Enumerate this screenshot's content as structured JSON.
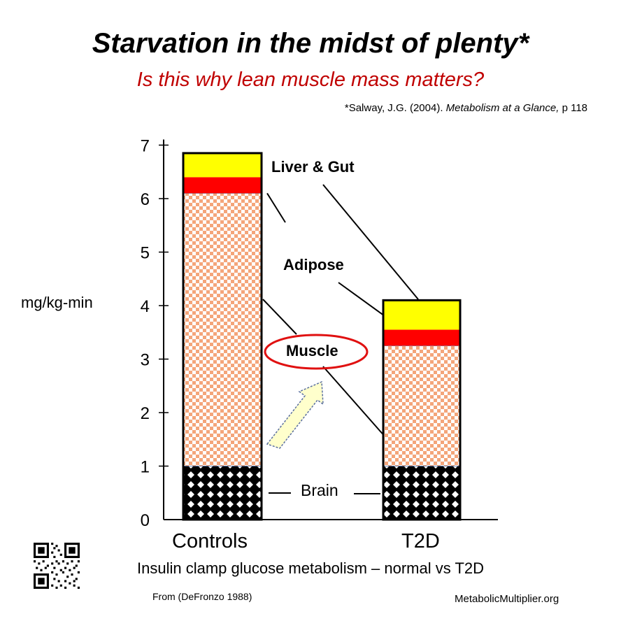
{
  "page": {
    "title": "Starvation in the midst of plenty*",
    "subtitle": "Is this why lean muscle mass matters?",
    "citation_prefix": "*Salway, J.G. (2004). ",
    "citation_italic": "Metabolism at a Glance,",
    "citation_suffix": " p 118",
    "caption": "Insulin clamp glucose metabolism – normal vs T2D",
    "source": "From (DeFronzo 1988)",
    "website": "MetabolicMultiplier.org"
  },
  "colors": {
    "liver_gut": "#ffff00",
    "adipose": "#ff0000",
    "muscle_check_a": "#f4a57a",
    "muscle_check_b": "#ffffff",
    "brain_bg": "#000000",
    "muscle_ellipse": "#e01010",
    "arrow_fill": "#ffffcc",
    "arrow_stroke": "#5a6f9e",
    "subtitle": "#c00000"
  },
  "chart_data": {
    "type": "bar",
    "stacked": true,
    "ylabel": "mg/kg-min",
    "ylim": [
      0,
      7
    ],
    "yticks": [
      "0",
      "1",
      "2",
      "3",
      "4",
      "5",
      "6",
      "7"
    ],
    "categories": [
      "Controls",
      "T2D"
    ],
    "series": [
      {
        "name": "Brain",
        "values": [
          1.0,
          1.0
        ]
      },
      {
        "name": "Muscle",
        "values": [
          5.1,
          2.25
        ]
      },
      {
        "name": "Adipose",
        "values": [
          0.3,
          0.3
        ]
      },
      {
        "name": "Liver & Gut",
        "values": [
          0.45,
          0.55
        ]
      }
    ],
    "totals": [
      6.85,
      4.1
    ],
    "icons": {
      "arrow": "up-right-arrow-icon",
      "highlight": "ellipse-highlight-icon"
    }
  }
}
